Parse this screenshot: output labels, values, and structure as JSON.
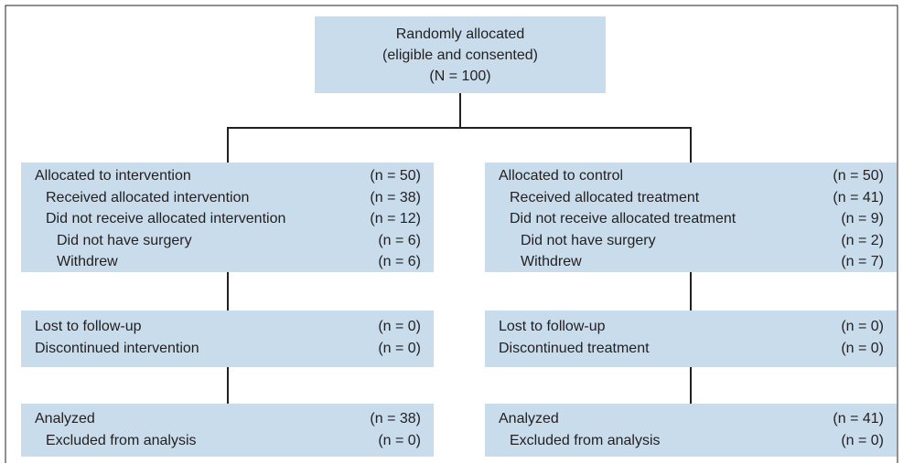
{
  "top": {
    "lines": [
      "Randomly allocated",
      "(eligible and consented)",
      "(N = 100)"
    ]
  },
  "columns": [
    {
      "boxes": [
        {
          "entries": [
            {
              "label": "Allocated to intervention",
              "count": "(n = 50)",
              "items": [
                {
                  "label": "Received allocated intervention",
                  "count": "(n = 38)"
                },
                {
                  "label": "Did not receive allocated intervention",
                  "count": "(n = 12)",
                  "items": [
                    {
                      "label": "Did not have surgery",
                      "count": "(n = 6)"
                    },
                    {
                      "label": "Withdrew",
                      "count": "(n = 6)"
                    }
                  ]
                }
              ]
            }
          ]
        },
        {
          "entries": [
            {
              "label": "Lost to follow-up",
              "count": "(n = 0)"
            },
            {
              "label": "Discontinued intervention",
              "count": "(n = 0)"
            }
          ]
        },
        {
          "entries": [
            {
              "label": "Analyzed",
              "count": "(n = 38)",
              "items": [
                {
                  "label": "Excluded from analysis",
                  "count": "(n = 0)"
                }
              ]
            }
          ]
        }
      ]
    },
    {
      "boxes": [
        {
          "entries": [
            {
              "label": "Allocated to control",
              "count": "(n = 50)",
              "items": [
                {
                  "label": "Received allocated treatment",
                  "count": "(n = 41)"
                },
                {
                  "label": "Did not receive allocated treatment",
                  "count": "(n = 9)",
                  "items": [
                    {
                      "label": "Did not have surgery",
                      "count": "(n = 2)"
                    },
                    {
                      "label": "Withdrew",
                      "count": "(n = 7)"
                    }
                  ]
                }
              ]
            }
          ]
        },
        {
          "entries": [
            {
              "label": "Lost to follow-up",
              "count": "(n = 0)"
            },
            {
              "label": "Discontinued treatment",
              "count": "(n = 0)"
            }
          ]
        },
        {
          "entries": [
            {
              "label": "Analyzed",
              "count": "(n = 41)",
              "items": [
                {
                  "label": "Excluded from analysis",
                  "count": "(n = 0)"
                }
              ]
            }
          ]
        }
      ]
    }
  ]
}
